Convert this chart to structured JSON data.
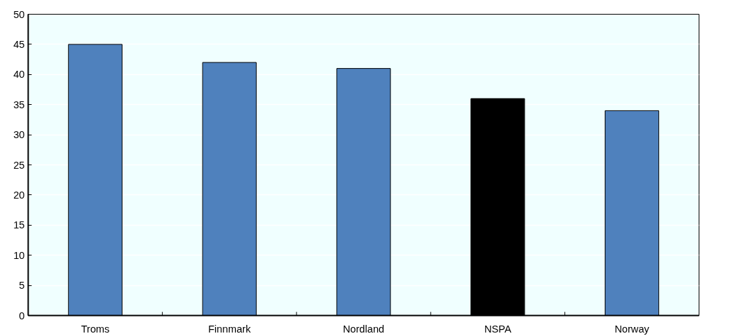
{
  "chart_data": {
    "type": "bar",
    "categories": [
      "Troms",
      "Finnmark",
      "Nordland",
      "NSPA",
      "Norway"
    ],
    "values": [
      45,
      42,
      41,
      36,
      34
    ],
    "colors": [
      "#4f81bd",
      "#4f81bd",
      "#4f81bd",
      "#000000",
      "#4f81bd"
    ],
    "ylim": [
      0,
      50
    ],
    "yticks": [
      0,
      5,
      10,
      15,
      20,
      25,
      30,
      35,
      40,
      45,
      50
    ],
    "grid": "y"
  }
}
